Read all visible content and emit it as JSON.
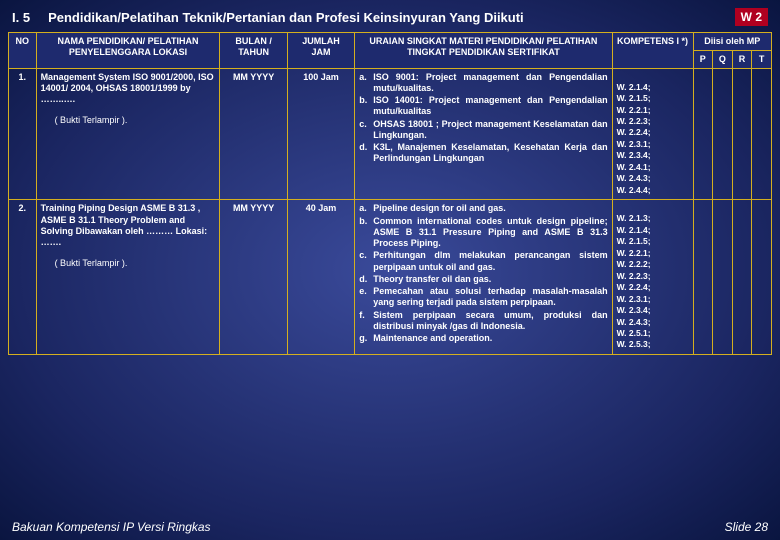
{
  "header": {
    "section_number": "I. 5",
    "title": "Pendidikan/Pelatihan Teknik/Pertanian dan Profesi Keinsinyuran Yang Diikuti",
    "badge": "W 2"
  },
  "columns": {
    "no": "NO",
    "nama": "NAMA PENDIDIKAN/ PELATIHAN PENYELENGGARA LOKASI",
    "bulan": "BULAN / TAHUN",
    "jumlah": "JUMLAH JAM",
    "uraian": "URAIAN SINGKAT MATERI PENDIDIKAN/ PELATIHAN TINGKAT PENDIDIKAN SERTIFIKAT",
    "kompetens": "KOMPETENS I *)",
    "diisi": "Diisi oleh MP",
    "p": "P",
    "q": "Q",
    "r": "R",
    "t": "T"
  },
  "rows": [
    {
      "no": "1.",
      "nama": "Management System ISO 9001/2000, ISO 14001/ 2004, OHSAS 18001/1999 by ……..….",
      "attach": "( Bukti Terlampir ).",
      "bulan": "MM YYYY",
      "jumlah": "100 Jam",
      "uraian": [
        {
          "l": "a.",
          "t": "ISO 9001: Project management dan Pengendalian mutu/kualitas."
        },
        {
          "l": "b.",
          "t": "ISO 14001: Project management dan Pengendalian mutu/kualitas"
        },
        {
          "l": "c.",
          "t": "OHSAS 18001 ; Project management Keselamatan dan Lingkungan."
        },
        {
          "l": "d.",
          "t": "K3L, Manajemen Keselamatan, Kesehatan Kerja dan Perlindungan Lingkungan"
        }
      ],
      "komp": "W. 2.1.4;\nW. 2.1.5;\nW. 2.2.1;\nW. 2.2.3;\nW. 2.2.4;\nW. 2.3.1;\nW. 2.3.4;\nW. 2.4.1;\nW. 2.4.3;\nW. 2.4.4;"
    },
    {
      "no": "2.",
      "nama": "Training Piping Design ASME B 31.3 , ASME B 31.1 Theory Problem and Solving Dibawakan oleh ……… Lokasi: …….",
      "attach": "( Bukti Terlampir ).",
      "bulan": "MM YYYY",
      "jumlah": "40 Jam",
      "uraian": [
        {
          "l": "a.",
          "t": "Pipeline design for oil and gas."
        },
        {
          "l": "b.",
          "t": "Common international codes untuk design pipeline; ASME B 31.1 Pressure Piping and ASME B 31.3 Process Piping."
        },
        {
          "l": "c.",
          "t": "Perhitungan dlm melakukan perancangan sistem perpipaan untuk oil and gas."
        },
        {
          "l": "d.",
          "t": "Theory transfer oil dan gas."
        },
        {
          "l": "e.",
          "t": "Pemecahan atau solusi terhadap masalah-masalah yang sering terjadi pada sistem perpipaan."
        },
        {
          "l": "f.",
          "t": "Sistem perpipaan secara umum, produksi dan distribusi minyak /gas di Indonesia."
        },
        {
          "l": "g.",
          "t": "Maintenance and operation."
        }
      ],
      "komp": "W. 2.1.3;\nW. 2.1.4;\nW. 2.1.5;\nW. 2.2.1;\nW. 2.2.2;\nW. 2.2.3;\nW. 2.2.4;\nW. 2.3.1;\nW. 2.3.4;\nW. 2.4.3;\nW. 2.5.1;\nW. 2.5.3;"
    }
  ],
  "footer": {
    "left": "Bakuan Kompetensi IP Versi Ringkas",
    "right": "Slide 28"
  }
}
